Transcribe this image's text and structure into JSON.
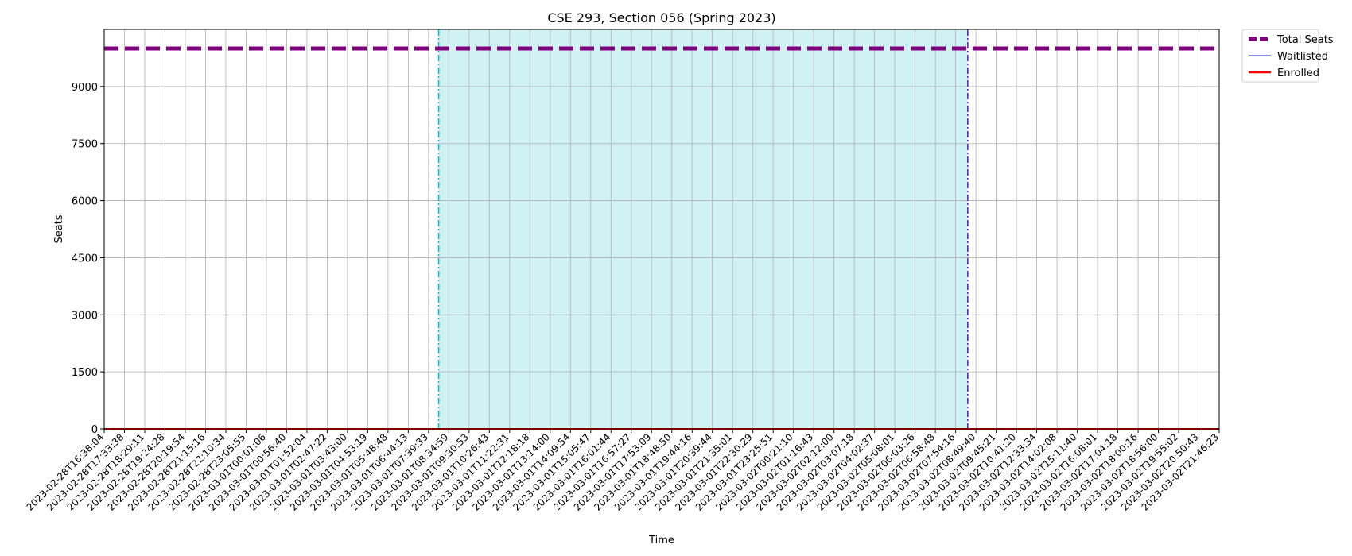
{
  "chart_data": {
    "type": "line",
    "title": "CSE 293, Section 056 (Spring 2023)",
    "xlabel": "Time",
    "ylabel": "Seats",
    "x": [
      "2023-02-28T16:38:04",
      "2023-02-28T17:33:38",
      "2023-02-28T18:29:11",
      "2023-02-28T19:24:28",
      "2023-02-28T20:19:54",
      "2023-02-28T21:15:16",
      "2023-02-28T22:10:34",
      "2023-02-28T23:05:55",
      "2023-03-01T00:01:06",
      "2023-03-01T00:56:40",
      "2023-03-01T01:52:04",
      "2023-03-01T02:47:22",
      "2023-03-01T03:43:00",
      "2023-03-01T04:53:19",
      "2023-03-01T05:48:48",
      "2023-03-01T06:44:13",
      "2023-03-01T07:39:33",
      "2023-03-01T08:34:59",
      "2023-03-01T09:30:53",
      "2023-03-01T10:26:43",
      "2023-03-01T11:22:31",
      "2023-03-01T12:18:18",
      "2023-03-01T13:14:00",
      "2023-03-01T14:09:54",
      "2023-03-01T15:05:47",
      "2023-03-01T16:01:44",
      "2023-03-01T16:57:27",
      "2023-03-01T17:53:09",
      "2023-03-01T18:48:50",
      "2023-03-01T19:44:16",
      "2023-03-01T20:39:44",
      "2023-03-01T21:35:01",
      "2023-03-01T22:30:29",
      "2023-03-01T23:25:51",
      "2023-03-02T00:21:10",
      "2023-03-02T01:16:43",
      "2023-03-02T02:12:00",
      "2023-03-02T03:07:18",
      "2023-03-02T04:02:37",
      "2023-03-02T05:08:01",
      "2023-03-02T06:03:26",
      "2023-03-02T06:58:48",
      "2023-03-02T07:54:16",
      "2023-03-02T08:49:40",
      "2023-03-02T09:45:21",
      "2023-03-02T10:41:20",
      "2023-03-02T12:33:34",
      "2023-03-02T14:02:08",
      "2023-03-02T15:11:40",
      "2023-03-02T16:08:01",
      "2023-03-02T17:04:18",
      "2023-03-02T18:00:16",
      "2023-03-02T18:56:00",
      "2023-03-02T19:55:02",
      "2023-03-02T20:50:43",
      "2023-03-02T21:46:23"
    ],
    "yticks": [
      0,
      1500,
      3000,
      4500,
      6000,
      7500,
      9000
    ],
    "ylim": [
      0,
      10500
    ],
    "grid": true,
    "legend_position": "outside-top-right",
    "series": [
      {
        "name": "Total Seats",
        "value": 10000,
        "color": "#800080",
        "style": "dashed"
      },
      {
        "name": "Waitlisted",
        "value": 0,
        "color": "#4040ff",
        "style": "solid"
      },
      {
        "name": "Enrolled",
        "value": 0,
        "color": "#ff0000",
        "style": "solid"
      }
    ],
    "shaded_region": {
      "start_index": 16.5,
      "end_index": 42.6,
      "color": "#d0f2f4"
    },
    "vlines": [
      {
        "index": 16.5,
        "color": "#00bfd8",
        "style": "dashdot"
      },
      {
        "index": 42.6,
        "color": "#5a20c0",
        "style": "dashdot"
      }
    ]
  }
}
